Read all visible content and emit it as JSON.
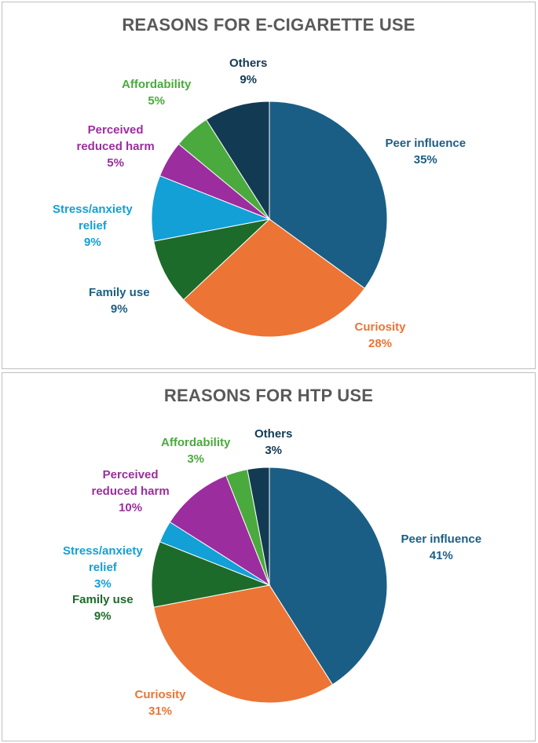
{
  "chart_data": [
    {
      "type": "pie",
      "title": "REASONS FOR E-CIGARETTE USE",
      "slices": [
        {
          "name": "Peer influence",
          "label_lines": [
            "Peer influence"
          ],
          "value": 35,
          "pct_label": "35%",
          "color": "#1B5E85",
          "label_color": "#1B5E85"
        },
        {
          "name": "Curiosity",
          "label_lines": [
            "Curiosity"
          ],
          "value": 28,
          "pct_label": "28%",
          "color": "#EC7434",
          "label_color": "#EC7434"
        },
        {
          "name": "Family use",
          "label_lines": [
            "Family use"
          ],
          "value": 9,
          "pct_label": "9%",
          "color": "#1D6B2A",
          "label_color": "#1B5E85"
        },
        {
          "name": "Stress/anxiety relief",
          "label_lines": [
            "Stress/anxiety",
            "relief"
          ],
          "value": 9,
          "pct_label": "9%",
          "color": "#12A0D7",
          "label_color": "#12A0D7"
        },
        {
          "name": "Perceived reduced harm",
          "label_lines": [
            "Perceived",
            "reduced harm"
          ],
          "value": 5,
          "pct_label": "5%",
          "color": "#9C2D9E",
          "label_color": "#9C2D9E"
        },
        {
          "name": "Affordability",
          "label_lines": [
            "Affordability"
          ],
          "value": 5,
          "pct_label": "5%",
          "color": "#4AAA3D",
          "label_color": "#4AAA3D"
        },
        {
          "name": "Others",
          "label_lines": [
            "Others"
          ],
          "value": 9,
          "pct_label": "9%",
          "color": "#133A53",
          "label_color": "#133A53"
        }
      ]
    },
    {
      "type": "pie",
      "title": "REASONS FOR HTP USE",
      "slices": [
        {
          "name": "Peer influence",
          "label_lines": [
            "Peer influence"
          ],
          "value": 41,
          "pct_label": "41%",
          "color": "#1B5E85",
          "label_color": "#1B5E85"
        },
        {
          "name": "Curiosity",
          "label_lines": [
            "Curiosity"
          ],
          "value": 31,
          "pct_label": "31%",
          "color": "#EC7434",
          "label_color": "#EC7434"
        },
        {
          "name": "Family use",
          "label_lines": [
            "Family use"
          ],
          "value": 9,
          "pct_label": "9%",
          "color": "#1D6B2A",
          "label_color": "#1D6B2A"
        },
        {
          "name": "Stress/anxiety relief",
          "label_lines": [
            "Stress/anxiety",
            "relief"
          ],
          "value": 3,
          "pct_label": "3%",
          "color": "#12A0D7",
          "label_color": "#12A0D7"
        },
        {
          "name": "Perceived reduced harm",
          "label_lines": [
            "Perceived",
            "reduced harm"
          ],
          "value": 10,
          "pct_label": "10%",
          "color": "#9C2D9E",
          "label_color": "#9C2D9E"
        },
        {
          "name": "Affordability",
          "label_lines": [
            "Affordability"
          ],
          "value": 3,
          "pct_label": "3%",
          "color": "#4AAA3D",
          "label_color": "#4AAA3D"
        },
        {
          "name": "Others",
          "label_lines": [
            "Others"
          ],
          "value": 3,
          "pct_label": "3%",
          "color": "#133A53",
          "label_color": "#133A53"
        }
      ]
    }
  ]
}
